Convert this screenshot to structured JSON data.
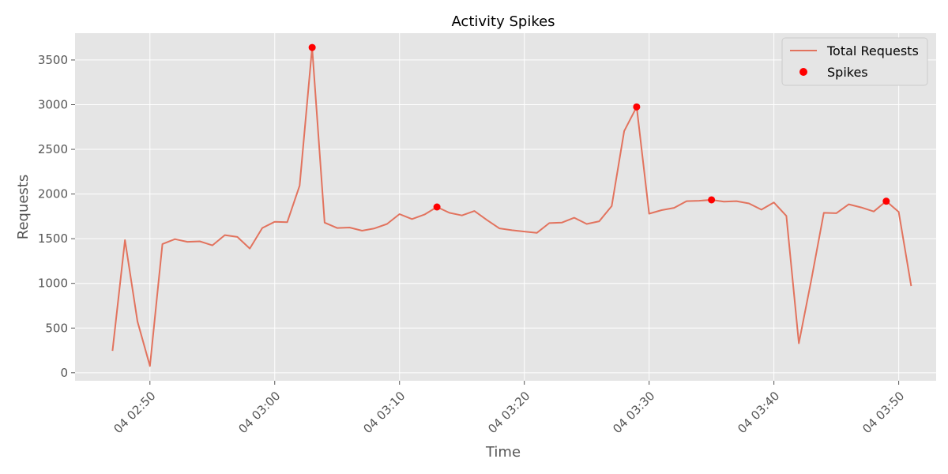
{
  "chart_data": {
    "type": "line",
    "title": "Activity Spikes",
    "xlabel": "Time",
    "ylabel": "Requests",
    "x_ticks": [
      "04 02:50",
      "04 03:00",
      "04 03:10",
      "04 03:20",
      "04 03:30",
      "04 03:40",
      "04 03:50"
    ],
    "y_ticks": [
      0,
      500,
      1000,
      1500,
      2000,
      2500,
      3000,
      3500
    ],
    "ylim": [
      -90,
      3800
    ],
    "xlim": [
      "04 02:44",
      "04 03:53"
    ],
    "grid": true,
    "legend_position": "top-right",
    "x": [
      "04 02:47",
      "04 02:48",
      "04 02:49",
      "04 02:50",
      "04 02:51",
      "04 02:52",
      "04 02:53",
      "04 02:54",
      "04 02:55",
      "04 02:56",
      "04 02:57",
      "04 02:58",
      "04 02:59",
      "04 03:00",
      "04 03:01",
      "04 03:02",
      "04 03:03",
      "04 03:04",
      "04 03:05",
      "04 03:06",
      "04 03:07",
      "04 03:08",
      "04 03:09",
      "04 03:10",
      "04 03:11",
      "04 03:12",
      "04 03:13",
      "04 03:14",
      "04 03:15",
      "04 03:16",
      "04 03:17",
      "04 03:18",
      "04 03:19",
      "04 03:20",
      "04 03:21",
      "04 03:22",
      "04 03:23",
      "04 03:24",
      "04 03:25",
      "04 03:26",
      "04 03:27",
      "04 03:28",
      "04 03:29",
      "04 03:30",
      "04 03:31",
      "04 03:32",
      "04 03:33",
      "04 03:34",
      "04 03:35",
      "04 03:36",
      "04 03:37",
      "04 03:38",
      "04 03:39",
      "04 03:40",
      "04 03:41",
      "04 03:42",
      "04 03:43",
      "04 03:44",
      "04 03:45",
      "04 03:46",
      "04 03:47",
      "04 03:48",
      "04 03:49",
      "04 03:50",
      "04 03:51"
    ],
    "series": [
      {
        "name": "Total Requests",
        "kind": "line",
        "color": "#E2735E",
        "values": [
          245,
          1485,
          575,
          75,
          1440,
          1495,
          1465,
          1470,
          1425,
          1540,
          1520,
          1390,
          1620,
          1690,
          1685,
          2095,
          3640,
          1680,
          1620,
          1625,
          1590,
          1615,
          1665,
          1775,
          1720,
          1770,
          1855,
          1790,
          1760,
          1810,
          1710,
          1615,
          1595,
          1580,
          1565,
          1675,
          1680,
          1735,
          1665,
          1695,
          1865,
          2705,
          2975,
          1780,
          1820,
          1845,
          1920,
          1925,
          1935,
          1915,
          1920,
          1895,
          1825,
          1905,
          1755,
          330,
          1040,
          1790,
          1785,
          1885,
          1850,
          1805,
          1920,
          1800,
          970
        ]
      },
      {
        "name": "Spikes",
        "kind": "scatter",
        "color": "#FF0000",
        "x": [
          "04 03:03",
          "04 03:13",
          "04 03:29",
          "04 03:35",
          "04 03:49"
        ],
        "values": [
          3640,
          1855,
          2975,
          1935,
          1920
        ]
      }
    ],
    "colors": {
      "background": "#E5E5E5",
      "grid": "#FFFFFF",
      "text": "#555555"
    }
  }
}
